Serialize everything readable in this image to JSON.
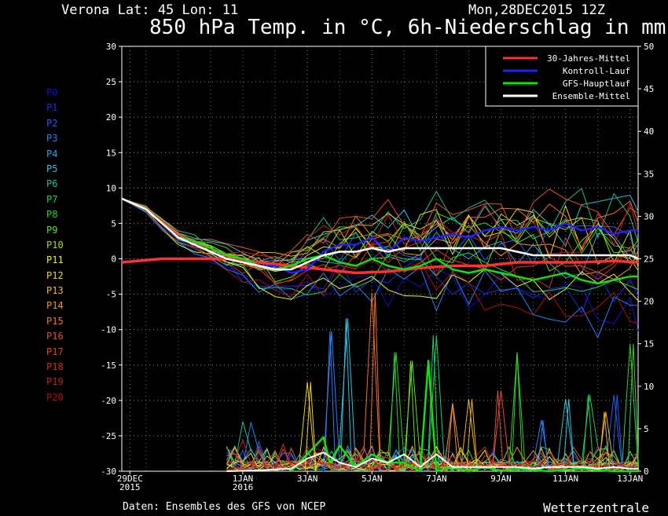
{
  "header": {
    "location": "Verona   Lat: 45 Lon: 11",
    "run": "Mon,28DEC2015 12Z",
    "title": "850 hPa Temp. in °C, 6h-Niederschlag in mm"
  },
  "footer": {
    "source": "Daten: Ensembles des GFS von NCEP",
    "brand": "Wetterzentrale"
  },
  "members": [
    {
      "label": "P0",
      "color": "#1010d0"
    },
    {
      "label": "P1",
      "color": "#1a2ee0"
    },
    {
      "label": "P2",
      "color": "#2060f0"
    },
    {
      "label": "P3",
      "color": "#2a80f8"
    },
    {
      "label": "P4",
      "color": "#30a0f0"
    },
    {
      "label": "P5",
      "color": "#30c0e0"
    },
    {
      "label": "P6",
      "color": "#20c080"
    },
    {
      "label": "P7",
      "color": "#20d060"
    },
    {
      "label": "P8",
      "color": "#30d030"
    },
    {
      "label": "P9",
      "color": "#60e020"
    },
    {
      "label": "P10",
      "color": "#a0e020"
    },
    {
      "label": "P11",
      "color": "#f0f020"
    },
    {
      "label": "P12",
      "color": "#f0d030"
    },
    {
      "label": "P13",
      "color": "#f0b030"
    },
    {
      "label": "P14",
      "color": "#f09030"
    },
    {
      "label": "P15",
      "color": "#f07030"
    },
    {
      "label": "P16",
      "color": "#e05030"
    },
    {
      "label": "P17",
      "color": "#e04020"
    },
    {
      "label": "P18",
      "color": "#d03020"
    },
    {
      "label": "P19",
      "color": "#c02020"
    },
    {
      "label": "P20",
      "color": "#b01010"
    }
  ],
  "chart_data": {
    "type": "line",
    "x_labels": [
      {
        "day": 0,
        "label": "29DEC",
        "label2": "2015"
      },
      {
        "day": 3.5,
        "label": "1JAN",
        "label2": "2016"
      },
      {
        "day": 5.5,
        "label": "3JAN"
      },
      {
        "day": 7.5,
        "label": "5JAN"
      },
      {
        "day": 9.5,
        "label": "7JAN"
      },
      {
        "day": 11.5,
        "label": "9JAN"
      },
      {
        "day": 13.5,
        "label": "11JAN"
      },
      {
        "day": 15.5,
        "label": "13JAN"
      }
    ],
    "ylim_left": [
      -30,
      30
    ],
    "ylim_right": [
      0,
      50
    ],
    "y_ticks_left": [
      30,
      25,
      20,
      15,
      10,
      5,
      0,
      -5,
      -10,
      -15,
      -20,
      -25,
      -30
    ],
    "y_ticks_right": [
      50,
      45,
      40,
      35,
      30,
      25,
      20,
      15,
      10,
      5,
      0
    ],
    "grid": true,
    "legend_position": "top-right",
    "legend": [
      {
        "name": "30-Jahres-Mittel",
        "color": "#ff3030"
      },
      {
        "name": "Kontroll-Lauf",
        "color": "#2020ff"
      },
      {
        "name": "GFS-Hauptlauf",
        "color": "#10e010"
      },
      {
        "name": "Ensemble-Mittel",
        "color": "#ffffff"
      }
    ],
    "series": [
      {
        "name": "30-Jahres-Mittel",
        "color": "#ff3030",
        "width": 3.5,
        "x": [
          -0.25,
          1,
          2,
          3,
          4,
          5,
          6,
          7,
          8,
          9,
          10,
          11,
          12,
          13,
          14,
          15,
          15.75
        ],
        "y": [
          -0.5,
          0,
          0,
          0,
          -0.5,
          -1,
          -1.5,
          -2,
          -1.8,
          -1.3,
          -1,
          -1,
          -0.5,
          -0.5,
          -0.5,
          -0.3,
          -0.5
        ]
      },
      {
        "name": "Kontroll-Lauf",
        "color": "#2020ff",
        "width": 2.5,
        "x": [
          -0.25,
          0.5,
          1,
          1.5,
          2,
          2.5,
          3,
          3.5,
          4,
          4.5,
          5,
          5.5,
          6,
          6.5,
          7,
          7.5,
          8,
          8.5,
          9,
          9.5,
          10,
          10.5,
          11,
          11.5,
          12,
          12.5,
          13,
          13.5,
          14,
          14.5,
          15,
          15.5,
          15.75
        ],
        "y": [
          8.5,
          7,
          5,
          3,
          2,
          1,
          0,
          -0.5,
          -1,
          -1,
          -2,
          -1.5,
          1,
          2,
          2,
          3,
          1,
          3,
          2.5,
          3,
          3.5,
          3,
          4,
          4.5,
          4,
          4.5,
          4,
          5,
          4,
          4.5,
          3.5,
          4,
          4
        ]
      },
      {
        "name": "GFS-Hauptlauf",
        "color": "#10e010",
        "width": 2.5,
        "x": [
          -0.25,
          0.5,
          1,
          1.5,
          2,
          2.5,
          3,
          3.5,
          4,
          4.5,
          5,
          5.5,
          6,
          6.5,
          7,
          7.5,
          8,
          8.5,
          9,
          9.5,
          10,
          10.5,
          11,
          11.5,
          12,
          12.5,
          13,
          13.5,
          14,
          14.5,
          15,
          15.5,
          15.75
        ],
        "y": [
          8.5,
          7,
          5,
          3,
          2.5,
          1.5,
          0.5,
          0,
          -1,
          -1.5,
          -1,
          0,
          0.5,
          -0.5,
          -1,
          0,
          -1,
          -1.5,
          -1,
          0,
          -1.5,
          -2,
          -1.5,
          -2,
          -2.5,
          -3,
          -2.5,
          -2,
          -3,
          -3.5,
          -3,
          -2.5,
          -2.5
        ]
      },
      {
        "name": "Ensemble-Mittel",
        "color": "#ffffff",
        "width": 2.5,
        "x": [
          -0.25,
          0.5,
          1,
          1.5,
          2,
          2.5,
          3,
          3.5,
          4,
          4.5,
          5,
          5.5,
          6,
          6.5,
          7,
          7.5,
          8,
          8.5,
          9,
          9.5,
          10,
          10.5,
          11,
          11.5,
          12,
          12.5,
          13,
          13.5,
          14,
          14.5,
          15,
          15.5,
          15.75
        ],
        "y": [
          8.5,
          7,
          5,
          3,
          2,
          1,
          0,
          -0.5,
          -1,
          -1.5,
          -1.5,
          -0.5,
          0.5,
          1,
          1,
          1.5,
          1,
          1.5,
          1.5,
          1.5,
          1.5,
          1.5,
          1.5,
          1.5,
          1,
          0.5,
          0.5,
          0.5,
          0.5,
          0.5,
          0.5,
          0.5,
          0
        ]
      }
    ],
    "members_temp_envelope": {
      "x": [
        -0.25,
        0.5,
        1,
        1.5,
        2,
        2.5,
        3,
        3.5,
        4,
        4.5,
        5,
        5.5,
        6,
        6.5,
        7,
        7.5,
        8,
        8.5,
        9,
        9.5,
        10,
        10.5,
        11,
        11.5,
        12,
        12.5,
        13,
        13.5,
        14,
        14.5,
        15,
        15.5,
        15.75
      ],
      "center": [
        8.5,
        7,
        5,
        3,
        2,
        1,
        0,
        -0.8,
        -1.5,
        -2,
        -1.8,
        -1,
        0,
        0.5,
        0.8,
        1,
        1,
        1.2,
        1.2,
        1.2,
        1,
        1,
        0.8,
        0.8,
        0.5,
        0.3,
        0,
        -0.3,
        -0.5,
        -0.5,
        -0.8,
        -1,
        -1.2
      ],
      "spread": [
        0,
        0.3,
        0.6,
        0.8,
        1,
        1.3,
        1.5,
        2,
        2.5,
        3,
        3,
        3.5,
        4,
        4,
        4.5,
        4.5,
        5,
        5,
        5,
        5.5,
        5.5,
        5.5,
        6,
        6,
        6,
        6.5,
        6.5,
        6.5,
        7,
        7,
        7,
        7.5,
        7.5
      ]
    },
    "precip_mean": {
      "x": [
        3,
        4,
        5,
        5.5,
        6,
        6.5,
        7,
        7.5,
        8,
        8.5,
        9,
        9.5,
        10,
        10.5,
        11,
        11.5,
        12,
        12.5,
        13,
        13.5,
        14,
        14.5,
        15,
        15.5,
        15.75
      ],
      "y": [
        0,
        0.1,
        0.3,
        1.5,
        2.2,
        1,
        0.5,
        1.5,
        1,
        2,
        0.5,
        2,
        0.5,
        0.5,
        0.5,
        0.5,
        0.5,
        0.3,
        0.5,
        0.5,
        0.5,
        0.3,
        0.5,
        0.3,
        0.3
      ]
    },
    "precip_gfs": {
      "x": [
        5,
        5.5,
        6,
        6.2,
        6.5,
        7,
        7.5,
        8,
        8.5,
        9,
        9.25,
        9.5,
        10,
        10.5,
        11,
        11.5,
        12,
        13,
        14,
        15,
        15.75
      ],
      "y": [
        0,
        2,
        4,
        1,
        3,
        0.5,
        2,
        1,
        1,
        0,
        13,
        0,
        0.5,
        0,
        0.5,
        0,
        0.3,
        0,
        0.3,
        0,
        0
      ]
    },
    "precip_peaks": [
      {
        "x": 5.6,
        "y": 10.5,
        "c": "#f0d030"
      },
      {
        "x": 6.2,
        "y": 16.5,
        "c": "#2a80f8"
      },
      {
        "x": 6.7,
        "y": 18,
        "c": "#30c0e0"
      },
      {
        "x": 7.6,
        "y": 21,
        "c": "#f07030"
      },
      {
        "x": 8.2,
        "y": 14,
        "c": "#30d030"
      },
      {
        "x": 8.7,
        "y": 13,
        "c": "#60e020"
      },
      {
        "x": 9.4,
        "y": 16,
        "c": "#20d060"
      },
      {
        "x": 10.0,
        "y": 8,
        "c": "#f09030"
      },
      {
        "x": 10.6,
        "y": 8.5,
        "c": "#f0b030"
      },
      {
        "x": 11.4,
        "y": 9.5,
        "c": "#e05030"
      },
      {
        "x": 12.0,
        "y": 14,
        "c": "#30d030"
      },
      {
        "x": 12.8,
        "y": 6,
        "c": "#2a80f8"
      },
      {
        "x": 13.6,
        "y": 8.5,
        "c": "#30c0e0"
      },
      {
        "x": 14.2,
        "y": 9,
        "c": "#20d060"
      },
      {
        "x": 14.7,
        "y": 7,
        "c": "#f0b030"
      },
      {
        "x": 15.1,
        "y": 9,
        "c": "#2060f0"
      },
      {
        "x": 15.6,
        "y": 15,
        "c": "#30d030"
      }
    ]
  }
}
